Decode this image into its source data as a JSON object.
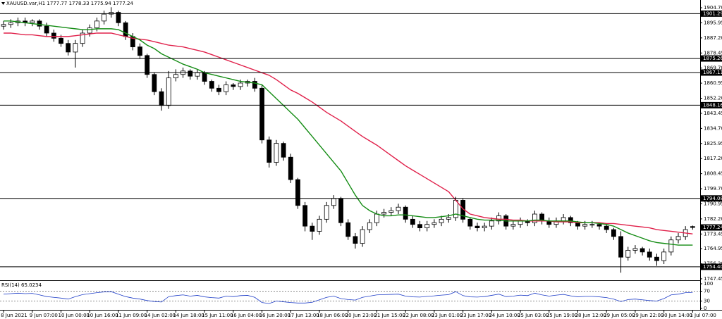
{
  "chart_data": {
    "type": "candlestick",
    "header": {
      "symbol": "XAUUSD.var,H1"
    },
    "candles": {
      "open": [
        1894,
        1895,
        1896,
        1897,
        1896,
        1897,
        1894,
        1890,
        1887,
        1884,
        1879,
        1884,
        1890,
        1893,
        1897,
        1901,
        1902,
        1896,
        1888,
        1882,
        1877,
        1866,
        1856,
        1848,
        1864,
        1866,
        1868,
        1865,
        1867,
        1862,
        1858,
        1856,
        1860,
        1859,
        1861,
        1862,
        1858,
        1828,
        1815,
        1826,
        1818,
        1805,
        1790,
        1778,
        1775,
        1782,
        1790,
        1794,
        1780,
        1772,
        1768,
        1776,
        1780,
        1785,
        1786,
        1787,
        1789,
        1782,
        1779,
        1777,
        1779,
        1780,
        1782,
        1783,
        1793,
        1782,
        1778,
        1777,
        1778,
        1781,
        1784,
        1778,
        1779,
        1781,
        1780,
        1785,
        1781,
        1779,
        1781,
        1783,
        1780,
        1778,
        1779,
        1779,
        1778,
        1776,
        1772,
        1760,
        1764,
        1765,
        1763,
        1760,
        1758,
        1763,
        1770,
        1772,
        1777.77
      ],
      "high": [
        1897,
        1898,
        1899,
        1899,
        1898,
        1898,
        1896,
        1892,
        1889,
        1886,
        1886,
        1892,
        1895,
        1899,
        1903,
        1905,
        1903,
        1897,
        1890,
        1884,
        1878,
        1867,
        1858,
        1868,
        1869,
        1870,
        1869,
        1869,
        1868,
        1863,
        1860,
        1862,
        1861,
        1863,
        1863,
        1864,
        1860,
        1830,
        1828,
        1827,
        1820,
        1806,
        1792,
        1780,
        1784,
        1792,
        1796,
        1795,
        1782,
        1774,
        1778,
        1782,
        1787,
        1788,
        1789,
        1791,
        1790,
        1784,
        1781,
        1781,
        1782,
        1784,
        1785,
        1795,
        1794,
        1783,
        1780,
        1780,
        1783,
        1786,
        1785,
        1781,
        1783,
        1782,
        1787,
        1786,
        1783,
        1783,
        1785,
        1784,
        1781,
        1781,
        1781,
        1780,
        1779,
        1777,
        1775,
        1766,
        1767,
        1766,
        1765,
        1762,
        1765,
        1772,
        1774,
        1778,
        1778.33
      ],
      "low": [
        1892,
        1893,
        1894,
        1894,
        1894,
        1892,
        1888,
        1885,
        1882,
        1877,
        1870,
        1882,
        1888,
        1891,
        1895,
        1899,
        1894,
        1886,
        1880,
        1875,
        1864,
        1854,
        1845,
        1846,
        1862,
        1864,
        1863,
        1863,
        1860,
        1856,
        1854,
        1854,
        1857,
        1857,
        1859,
        1856,
        1826,
        1812,
        1813,
        1816,
        1803,
        1788,
        1775,
        1770,
        1773,
        1780,
        1788,
        1778,
        1770,
        1765,
        1766,
        1774,
        1778,
        1783,
        1784,
        1785,
        1780,
        1777,
        1775,
        1775,
        1777,
        1778,
        1780,
        1781,
        1780,
        1776,
        1775,
        1775,
        1776,
        1779,
        1776,
        1776,
        1777,
        1778,
        1778,
        1779,
        1777,
        1777,
        1779,
        1778,
        1776,
        1776,
        1777,
        1776,
        1774,
        1770,
        1751,
        1758,
        1762,
        1761,
        1758,
        1755,
        1756,
        1761,
        1768,
        1770,
        1775.94
      ],
      "close": [
        1895,
        1896,
        1897,
        1896,
        1897,
        1894,
        1890,
        1887,
        1884,
        1879,
        1884,
        1890,
        1893,
        1897,
        1901,
        1902,
        1896,
        1888,
        1882,
        1877,
        1866,
        1856,
        1848,
        1864,
        1866,
        1868,
        1865,
        1867,
        1862,
        1858,
        1856,
        1860,
        1859,
        1861,
        1862,
        1858,
        1828,
        1815,
        1826,
        1818,
        1805,
        1790,
        1778,
        1775,
        1782,
        1790,
        1794,
        1780,
        1772,
        1768,
        1776,
        1780,
        1785,
        1786,
        1787,
        1789,
        1782,
        1779,
        1777,
        1779,
        1780,
        1782,
        1783,
        1793,
        1782,
        1778,
        1777,
        1778,
        1781,
        1784,
        1778,
        1779,
        1781,
        1780,
        1785,
        1781,
        1779,
        1781,
        1783,
        1780,
        1778,
        1779,
        1779,
        1778,
        1776,
        1772,
        1760,
        1764,
        1765,
        1763,
        1760,
        1758,
        1763,
        1770,
        1772,
        1776,
        1777.24
      ]
    },
    "series": [
      {
        "color": "#e0204a",
        "values": [
          1890,
          1890,
          1889.5,
          1889,
          1889,
          1888.5,
          1888,
          1888,
          1888,
          1888,
          1888.5,
          1889,
          1889.5,
          1890,
          1890,
          1890,
          1889,
          1888,
          1887,
          1886.5,
          1886,
          1885,
          1884,
          1883,
          1882.5,
          1882,
          1881,
          1880,
          1879,
          1877.5,
          1876,
          1874.5,
          1873,
          1871.5,
          1870,
          1868.5,
          1867,
          1865.5,
          1863,
          1860,
          1857,
          1855,
          1852.5,
          1850,
          1847,
          1844,
          1841.5,
          1839,
          1836,
          1833,
          1830,
          1827.5,
          1825,
          1822,
          1819,
          1816,
          1813,
          1810.5,
          1808,
          1805.5,
          1803,
          1800.5,
          1798,
          1793,
          1788,
          1785,
          1784,
          1783,
          1782.5,
          1782,
          1782,
          1781.5,
          1781.5,
          1781,
          1781,
          1781,
          1781,
          1780.5,
          1780.5,
          1780.5,
          1780,
          1780,
          1780,
          1780,
          1779.5,
          1779.5,
          1779,
          1778.5,
          1778,
          1777.5,
          1777,
          1776,
          1775.5,
          1775,
          1774.5,
          1774,
          1773.5
        ]
      },
      {
        "color": "#148c14",
        "values": [
          1897,
          1897,
          1896.5,
          1896,
          1895.5,
          1895,
          1894.5,
          1894,
          1893.5,
          1893,
          1892.5,
          1892,
          1892,
          1892.5,
          1892.5,
          1892.5,
          1892,
          1890,
          1888,
          1886,
          1883,
          1881,
          1878,
          1876,
          1874,
          1872,
          1870.5,
          1869,
          1867,
          1866,
          1865,
          1864,
          1863,
          1862,
          1861.5,
          1861,
          1860,
          1856,
          1852,
          1848,
          1844,
          1840,
          1835,
          1830,
          1825,
          1820,
          1815,
          1810,
          1803,
          1796,
          1790,
          1787,
          1785,
          1784,
          1784,
          1784.5,
          1784.5,
          1784,
          1783.5,
          1783,
          1783,
          1783.5,
          1784,
          1785,
          1784,
          1783,
          1782,
          1781.5,
          1781.5,
          1781.5,
          1781,
          1781,
          1781,
          1781,
          1781.5,
          1781.5,
          1781,
          1781,
          1781,
          1781,
          1780.5,
          1780,
          1780,
          1779.5,
          1779,
          1778,
          1776,
          1774,
          1772.5,
          1771,
          1769.5,
          1768.5,
          1768,
          1767.5,
          1767,
          1767,
          1767
        ]
      }
    ],
    "levels": [
      1901.29,
      1875.26,
      1867.11,
      1848.16,
      1794.08,
      {
        "value": 1754.4,
        "label": "1754.40"
      }
    ],
    "ylim": [
      1746.6,
      1907.97
    ],
    "yticks": [
      {
        "value": 1904.7,
        "label": "1904.70"
      },
      {
        "value": 1895.95,
        "label": "1895.95"
      },
      {
        "value": 1887.2,
        "label": "1887.20"
      },
      {
        "value": 1878.45,
        "label": "1878.45"
      },
      {
        "value": 1869.7,
        "label": "1869.70"
      },
      {
        "value": 1860.95,
        "label": "1860.95"
      },
      {
        "value": 1852.2,
        "label": "1852.20"
      },
      {
        "value": 1843.45,
        "label": "1843.45"
      },
      {
        "value": 1834.7,
        "label": "1834.70"
      },
      {
        "value": 1825.95,
        "label": "1825.95"
      },
      {
        "value": 1817.2,
        "label": "1817.20"
      },
      {
        "value": 1808.45,
        "label": "1808.45"
      },
      {
        "value": 1799.7,
        "label": "1799.70"
      },
      {
        "value": 1790.95,
        "label": "1790.95"
      },
      {
        "value": 1782.2,
        "label": "1782.20"
      },
      {
        "value": 1773.45,
        "label": "1773.45"
      },
      {
        "value": 1764.95,
        "label": "1764.95"
      },
      {
        "value": 1756.2,
        "label": "1756.20"
      },
      {
        "value": 1747.45,
        "label": "1747.45"
      }
    ],
    "xticks": [
      {
        "value": 0,
        "label": "8 Jun 2021"
      },
      {
        "value": 4,
        "label": "9 Jun 07:00"
      },
      {
        "value": 8,
        "label": "10 Jun 00:00"
      },
      {
        "value": 12,
        "label": "10 Jun 16:00"
      },
      {
        "value": 16,
        "label": "11 Jun 09:00"
      },
      {
        "value": 20,
        "label": "14 Jun 02:00"
      },
      {
        "value": 24,
        "label": "14 Jun 18:00"
      },
      {
        "value": 28,
        "label": "15 Jun 11:00"
      },
      {
        "value": 32,
        "label": "16 Jun 04:00"
      },
      {
        "value": 36,
        "label": "16 Jun 20:00"
      },
      {
        "value": 40,
        "label": "17 Jun 13:00"
      },
      {
        "value": 44,
        "label": "18 Jun 06:00"
      },
      {
        "value": 48,
        "label": "20 Jun 23:00"
      },
      {
        "value": 52,
        "label": "21 Jun 15:00"
      },
      {
        "value": 56,
        "label": "22 Jun 08:00"
      },
      {
        "value": 60,
        "label": "23 Jun 01:00"
      },
      {
        "value": 64,
        "label": "23 Jun 17:00"
      },
      {
        "value": 68,
        "label": "24 Jun 10:00"
      },
      {
        "value": 72,
        "label": "25 Jun 03:00"
      },
      {
        "value": 76,
        "label": "25 Jun 19:00"
      },
      {
        "value": 80,
        "label": "28 Jun 12:00"
      },
      {
        "value": 84,
        "label": "29 Jun 05:00"
      },
      {
        "value": 88,
        "label": "29 Jun 22:00"
      },
      {
        "value": 92,
        "label": "30 Jun 14:00"
      },
      {
        "value": 96,
        "label": "1 Jul 07:00"
      }
    ],
    "rsi": {
      "name": "RSI(14)",
      "color": "#1f3ec8",
      "values": [
        58,
        60,
        62,
        60,
        61,
        55,
        48,
        45,
        42,
        38,
        48,
        56,
        60,
        64,
        67,
        68,
        58,
        48,
        42,
        38,
        32,
        28,
        26,
        48,
        52,
        55,
        50,
        53,
        47,
        44,
        42,
        50,
        48,
        52,
        53,
        45,
        24,
        20,
        30,
        27,
        24,
        22,
        22,
        25,
        35,
        45,
        50,
        40,
        36,
        34,
        45,
        50,
        55,
        56,
        57,
        58,
        50,
        47,
        46,
        49,
        51,
        54,
        56,
        68,
        52,
        47,
        46,
        48,
        53,
        58,
        48,
        50,
        54,
        52,
        62,
        55,
        50,
        54,
        57,
        51,
        47,
        49,
        49,
        47,
        44,
        38,
        28,
        36,
        38,
        35,
        32,
        30,
        40,
        55,
        58,
        64,
        65.0234
      ],
      "ylim": [
        0,
        100
      ],
      "yticks": [
        100,
        70,
        30,
        0
      ],
      "levels": [
        70,
        30
      ]
    }
  }
}
